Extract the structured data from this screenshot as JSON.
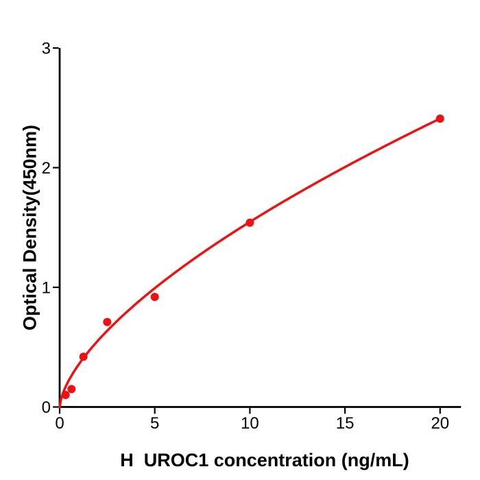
{
  "chart_data": {
    "type": "scatter",
    "title": "",
    "xlabel": "H  UROC1 concentration (ng/mL)",
    "ylabel": "Optical Density(450nm)",
    "x": [
      0.3125,
      0.625,
      1.25,
      2.5,
      5,
      10,
      20
    ],
    "y": [
      0.1,
      0.15,
      0.42,
      0.71,
      0.92,
      1.54,
      2.41
    ],
    "fit": {
      "type": "power",
      "a": 0.3543,
      "b": 0.64,
      "x_start": 0,
      "x_end": 20
    },
    "xticks": [
      0,
      5,
      10,
      15,
      20
    ],
    "yticks": [
      0,
      1,
      2,
      3
    ],
    "xlim": [
      0,
      21.1
    ],
    "ylim": [
      0,
      3
    ],
    "grid": false,
    "legend": "none",
    "marker_color": "#ee1111",
    "line_color": "#ee1111",
    "axis_color": "#000000",
    "background": "#ffffff"
  }
}
